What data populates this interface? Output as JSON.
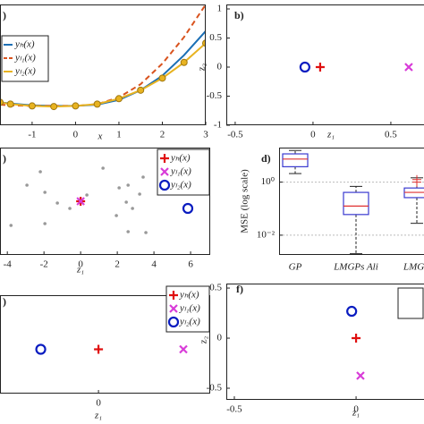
{
  "chart_data": [
    {
      "type": "line",
      "label": ")",
      "xlabel": "x",
      "x": [
        -1.74,
        -1.5,
        -1,
        -0.5,
        0,
        0.5,
        1,
        1.5,
        2,
        2.5,
        3
      ],
      "xlim": [
        -1.74,
        3
      ],
      "xticks": [
        -1,
        0,
        1,
        2,
        3
      ],
      "ylim": [
        0,
        10
      ],
      "series": [
        {
          "name": "yₕ(x)",
          "color": "#1b6fb5",
          "line_style": "solid",
          "values": [
            1.9,
            1.8,
            1.65,
            1.6,
            1.6,
            1.7,
            2.1,
            2.9,
            4.1,
            5.8,
            7.8
          ]
        },
        {
          "name": "yₗ₁(x)",
          "color": "#d9531e",
          "line_style": "dashed",
          "values": [
            1.7,
            1.65,
            1.6,
            1.6,
            1.6,
            1.75,
            2.3,
            3.4,
            5.1,
            7.3,
            10
          ]
        },
        {
          "name": "yₗ₂(x)",
          "color": "#e8b320",
          "line_style": "solid",
          "marker": "circle",
          "values": [
            1.9,
            1.75,
            1.6,
            1.55,
            1.6,
            1.75,
            2.2,
            2.9,
            3.9,
            5.2,
            6.8
          ]
        }
      ]
    },
    {
      "type": "scatter",
      "label": "b)",
      "xlabel": "z₁",
      "ylabel": "z₂",
      "xlim": [
        -0.557,
        0.713
      ],
      "xticks": [
        -0.5,
        0,
        0.5
      ],
      "ylim": [
        -1,
        1.077
      ],
      "yticks": [
        1,
        0.5,
        0,
        -0.5,
        -1
      ],
      "series": [
        {
          "color": "#0a1cc0",
          "marker": "circle",
          "x": [
            -0.052
          ],
          "values": [
            0
          ]
        },
        {
          "color": "#e01010",
          "marker": "plus",
          "x": [
            0.046
          ],
          "values": [
            0
          ]
        },
        {
          "color": "#d83cd8",
          "marker": "cross",
          "x": [
            0.615
          ],
          "values": [
            0
          ]
        }
      ]
    },
    {
      "type": "scatter",
      "label": ")",
      "xlabel": "z₁",
      "xlim": [
        -4.4,
        7.07
      ],
      "xticks": [
        -4,
        -2,
        0,
        2,
        4,
        6
      ],
      "ylim": [
        -3,
        3
      ],
      "series": [
        {
          "color": "#999999",
          "marker": "dot",
          "x": [
            -2.93,
            -1.95,
            -1.27,
            -1.95,
            -3.8,
            1.22,
            2.59,
            2.49,
            1.95,
            2.59,
            2.83,
            3.22,
            3.41,
            2.1,
            3.56,
            -0.59,
            -2.2,
            0.34
          ],
          "values": [
            0.9,
            0.5,
            -0.1,
            -1.25,
            -1.35,
            1.85,
            0.9,
            -0.05,
            -0.8,
            -1.7,
            -0.4,
            0.4,
            1.35,
            0.75,
            -1.75,
            -0.4,
            1.65,
            0.35
          ]
        },
        {
          "name": "yₕ(x)",
          "color": "#e01010",
          "marker": "plus",
          "x": [
            0
          ],
          "values": [
            0
          ]
        },
        {
          "name": "yₗ₁(x)",
          "color": "#d83cd8",
          "marker": "cross",
          "x": [
            0
          ],
          "values": [
            0
          ]
        },
        {
          "name": "yₗ₂(x)",
          "color": "#0a1cc0",
          "marker": "circle",
          "x": [
            5.85
          ],
          "values": [
            -0.4
          ]
        }
      ]
    },
    {
      "type": "box",
      "label": "d)",
      "ylabel": "MSE (log scale)",
      "log_scale": true,
      "grid": true,
      "categories": [
        "GP",
        "LMGPs Ali",
        "LMGP"
      ],
      "ylim": [
        0.0018,
        20
      ],
      "yticks": [
        {
          "value": 1,
          "label": "10⁰"
        },
        {
          "value": 0.01,
          "label": "10⁻²"
        }
      ],
      "box_color": "#3a3ad0",
      "median_color": "#e03030",
      "boxes": [
        {
          "min": 2.1,
          "q1": 3.8,
          "median": 7.4,
          "q3": 11.6,
          "max": 15.6,
          "outliers": []
        },
        {
          "min": 0.002,
          "q1": 0.06,
          "median": 0.125,
          "q3": 0.41,
          "max": 0.69,
          "outliers": []
        },
        {
          "min": 0.028,
          "q1": 0.26,
          "median": 0.41,
          "q3": 0.6,
          "max": 1.45,
          "outliers": [
            1.25,
            1.0
          ]
        }
      ]
    },
    {
      "type": "scatter",
      "label": ")",
      "xlabel": "z₁",
      "xlim": [
        -1.16,
        1.316
      ],
      "xticks": [
        0
      ],
      "ylim": [
        -0.9,
        1.1
      ],
      "series": [
        {
          "name": "yₕ(x)",
          "color": "#e01010",
          "marker": "plus",
          "x": [
            0
          ],
          "values": [
            0
          ]
        },
        {
          "name": "yₗ₁(x)",
          "color": "#d83cd8",
          "marker": "cross",
          "x": [
            1
          ],
          "values": [
            0
          ]
        },
        {
          "name": "yₗ₂(x)",
          "color": "#0a1cc0",
          "marker": "circle",
          "x": [
            -0.68
          ],
          "values": [
            0
          ]
        }
      ]
    },
    {
      "type": "scatter",
      "label": "f)",
      "xlabel": "z₁",
      "ylabel": "z₂",
      "xlim": [
        -0.533,
        0.279
      ],
      "xticks": [
        -0.5,
        0
      ],
      "ylim": [
        -0.616,
        0.545
      ],
      "yticks": [
        0.5,
        0,
        -0.5
      ],
      "series": [
        {
          "color": "#0a1cc0",
          "marker": "circle",
          "x": [
            -0.018
          ],
          "values": [
            0.268
          ]
        },
        {
          "color": "#e01010",
          "marker": "plus",
          "x": [
            0
          ],
          "values": [
            0
          ]
        },
        {
          "color": "#d83cd8",
          "marker": "cross",
          "x": [
            0.018
          ],
          "values": [
            -0.375
          ]
        }
      ]
    }
  ]
}
